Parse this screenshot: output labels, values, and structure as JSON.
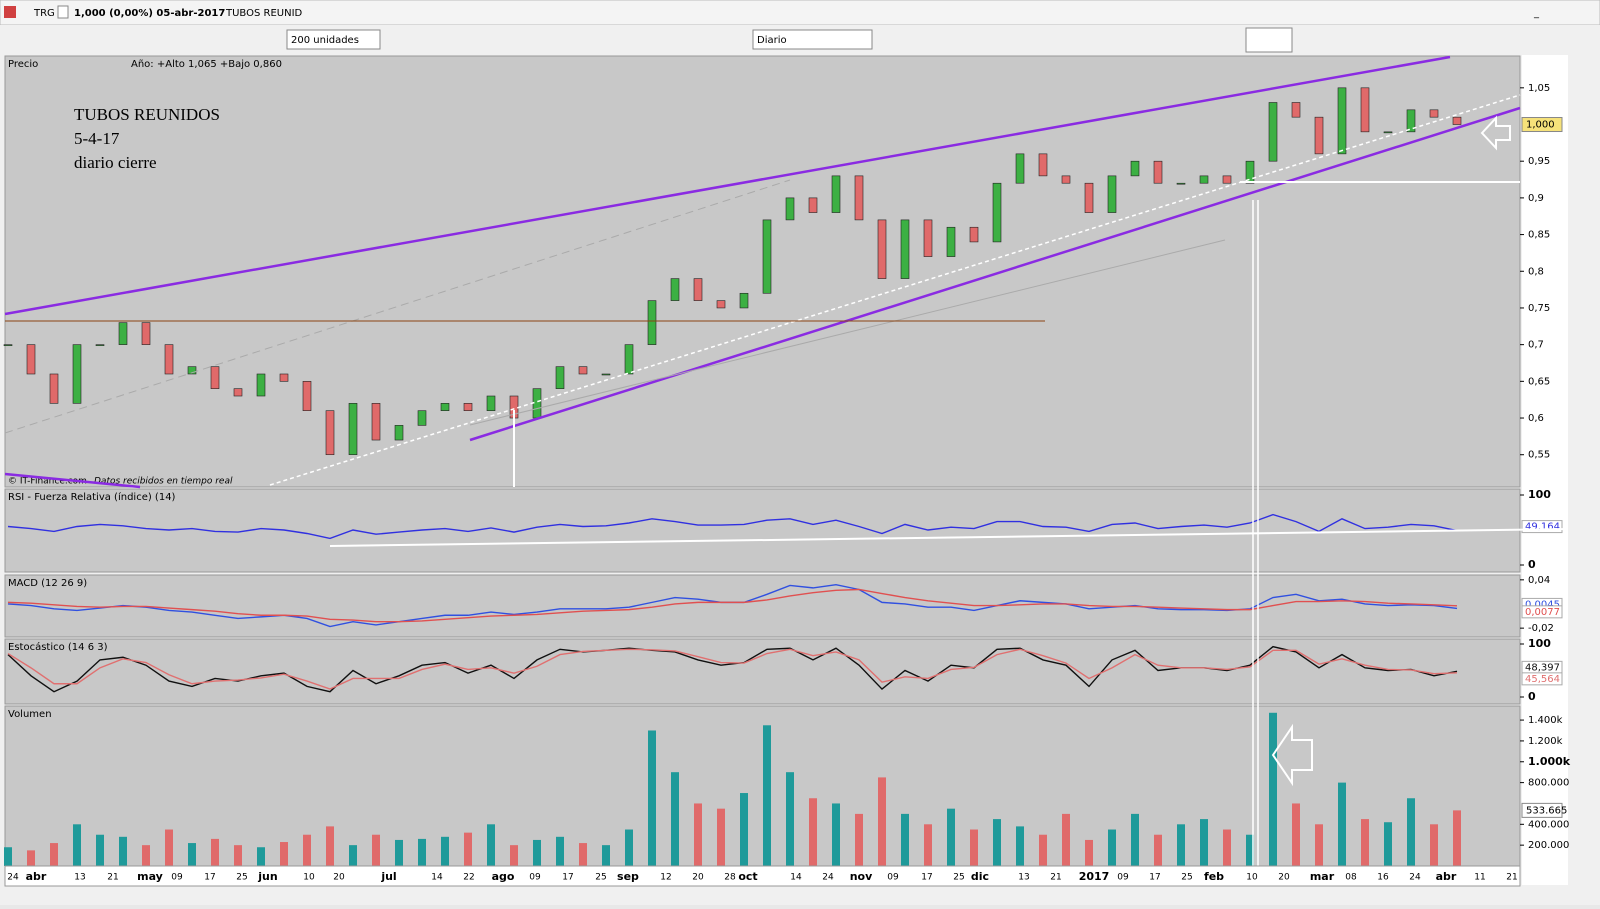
{
  "window": {
    "symbol": "TRG",
    "quote": "1,000 (0,00%) 05-abr-2017",
    "name": "TUBOS REUNID"
  },
  "toolbar": {
    "units": "200 unidades",
    "period": "Diario"
  },
  "time_axis": {
    "labels": [
      "24",
      "abr",
      "13",
      "21",
      "may",
      "09",
      "17",
      "25",
      "jun",
      "10",
      "20",
      "jul",
      "14",
      "22",
      "ago",
      "09",
      "17",
      "25",
      "sep",
      "12",
      "20",
      "28",
      "oct",
      "14",
      "24",
      "nov",
      "09",
      "17",
      "25",
      "dic",
      "13",
      "21",
      "2017",
      "09",
      "17",
      "25",
      "feb",
      "10",
      "20",
      "mar",
      "08",
      "16",
      "24",
      "abr",
      "11",
      "21"
    ]
  },
  "chart_data": [
    {
      "type": "candlestick",
      "title": "Precio",
      "subtitle": "Año: +Alto 1,065 +Bajo 0,860",
      "annotations": [
        "TUBOS REUNIDOS",
        "5-4-17",
        "diario cierre"
      ],
      "footer": "© IT-Finance.com",
      "footer_note": "Datos recibidos en tiempo real",
      "last_label": "1,000",
      "values": [
        0.7,
        0.66,
        0.62,
        0.7,
        0.7,
        0.73,
        0.7,
        0.66,
        0.67,
        0.64,
        0.63,
        0.66,
        0.65,
        0.61,
        0.55,
        0.62,
        0.57,
        0.59,
        0.61,
        0.62,
        0.61,
        0.63,
        0.6,
        0.64,
        0.67,
        0.66,
        0.66,
        0.7,
        0.76,
        0.79,
        0.76,
        0.75,
        0.77,
        0.87,
        0.9,
        0.88,
        0.93,
        0.87,
        0.79,
        0.87,
        0.82,
        0.86,
        0.84,
        0.92,
        0.96,
        0.93,
        0.92,
        0.88,
        0.93,
        0.95,
        0.92,
        0.92,
        0.93,
        0.92,
        0.95,
        1.03,
        1.01,
        0.96,
        1.05,
        0.99,
        0.99,
        1.02,
        1.01,
        1.0
      ],
      "up_color": "#3cb043",
      "down_color": "#e06a6a",
      "ylim": [
        0.506,
        1.092
      ],
      "yticks": [
        {
          "value": 1.05,
          "label": "1,05"
        },
        {
          "value": 0.95,
          "label": "0,95"
        },
        {
          "value": 0.9,
          "label": "0,9"
        },
        {
          "value": 0.85,
          "label": "0,85"
        },
        {
          "value": 0.8,
          "label": "0,8"
        },
        {
          "value": 0.75,
          "label": "0,75"
        },
        {
          "value": 0.7,
          "label": "0,7"
        },
        {
          "value": 0.65,
          "label": "0,65"
        },
        {
          "value": 0.6,
          "label": "0,6"
        },
        {
          "value": 0.55,
          "label": "0,55"
        }
      ]
    },
    {
      "type": "line",
      "title": "RSI - Fuerza Relativa (índice) (14)",
      "series": [
        {
          "color": "#3030e0",
          "last_label": "49,164",
          "values": [
            55,
            52,
            48,
            55,
            58,
            56,
            52,
            50,
            52,
            48,
            47,
            52,
            50,
            45,
            38,
            50,
            44,
            47,
            50,
            52,
            48,
            53,
            47,
            54,
            58,
            55,
            56,
            60,
            66,
            62,
            57,
            57,
            58,
            64,
            66,
            58,
            64,
            55,
            45,
            58,
            50,
            54,
            52,
            62,
            62,
            55,
            54,
            48,
            58,
            60,
            52,
            55,
            57,
            54,
            60,
            72,
            62,
            48,
            66,
            52,
            54,
            58,
            56,
            49.164
          ]
        }
      ],
      "ylim": [
        0,
        100
      ],
      "yticks": [
        0,
        100
      ]
    },
    {
      "type": "line",
      "title": "MACD (12 26 9)",
      "series": [
        {
          "color": "#3050e0",
          "last_label": "0,0045",
          "values": [
            0.01,
            0.008,
            0.004,
            0.002,
            0.005,
            0.008,
            0.006,
            0.002,
            0.0,
            -0.004,
            -0.008,
            -0.006,
            -0.004,
            -0.008,
            -0.018,
            -0.012,
            -0.016,
            -0.012,
            -0.008,
            -0.004,
            -0.004,
            0.0,
            -0.003,
            0.0,
            0.004,
            0.004,
            0.004,
            0.006,
            0.012,
            0.018,
            0.016,
            0.012,
            0.012,
            0.022,
            0.033,
            0.03,
            0.034,
            0.028,
            0.012,
            0.01,
            0.006,
            0.006,
            0.002,
            0.008,
            0.014,
            0.012,
            0.01,
            0.004,
            0.006,
            0.008,
            0.004,
            0.003,
            0.003,
            0.002,
            0.004,
            0.018,
            0.022,
            0.014,
            0.016,
            0.01,
            0.008,
            0.009,
            0.008,
            0.0045
          ]
        },
        {
          "color": "#e05050",
          "last_label": "0,0077",
          "values": [
            0.012,
            0.011,
            0.009,
            0.007,
            0.006,
            0.007,
            0.007,
            0.005,
            0.003,
            0.001,
            -0.002,
            -0.004,
            -0.004,
            -0.005,
            -0.009,
            -0.01,
            -0.012,
            -0.012,
            -0.011,
            -0.009,
            -0.007,
            -0.005,
            -0.004,
            -0.003,
            -0.001,
            0.001,
            0.002,
            0.003,
            0.006,
            0.01,
            0.012,
            0.012,
            0.012,
            0.015,
            0.02,
            0.024,
            0.027,
            0.028,
            0.023,
            0.018,
            0.014,
            0.011,
            0.008,
            0.008,
            0.009,
            0.01,
            0.01,
            0.008,
            0.007,
            0.007,
            0.006,
            0.005,
            0.004,
            0.003,
            0.003,
            0.008,
            0.013,
            0.013,
            0.014,
            0.013,
            0.011,
            0.01,
            0.009,
            0.0077
          ]
        }
      ],
      "ylim": [
        -0.031,
        0.046
      ],
      "yticks": [
        {
          "value": 0.04,
          "label": "0,04"
        },
        {
          "value": -0.02,
          "label": "-0,02"
        }
      ]
    },
    {
      "type": "line",
      "title": "Estocástico (14 6 3)",
      "series": [
        {
          "color": "#101010",
          "last_label": "48,397",
          "values": [
            80,
            40,
            10,
            30,
            70,
            75,
            60,
            30,
            20,
            35,
            30,
            40,
            45,
            20,
            10,
            50,
            25,
            40,
            60,
            65,
            45,
            60,
            35,
            70,
            90,
            85,
            88,
            92,
            88,
            85,
            70,
            60,
            65,
            90,
            92,
            70,
            92,
            60,
            15,
            50,
            30,
            60,
            55,
            90,
            92,
            70,
            60,
            20,
            70,
            88,
            50,
            55,
            55,
            50,
            60,
            95,
            85,
            55,
            80,
            55,
            50,
            52,
            40,
            48.397
          ]
        },
        {
          "color": "#e07070",
          "last_label": "45,564",
          "values": [
            82,
            55,
            25,
            25,
            55,
            72,
            65,
            42,
            25,
            30,
            32,
            36,
            43,
            30,
            15,
            35,
            35,
            35,
            52,
            62,
            52,
            55,
            45,
            58,
            80,
            86,
            88,
            90,
            89,
            87,
            76,
            65,
            64,
            82,
            90,
            78,
            85,
            70,
            28,
            38,
            35,
            52,
            56,
            80,
            90,
            78,
            64,
            35,
            55,
            80,
            60,
            55,
            55,
            52,
            57,
            88,
            88,
            62,
            72,
            60,
            52,
            51,
            44,
            45.564
          ]
        }
      ],
      "ylim": [
        0,
        100
      ],
      "yticks": [
        0,
        100
      ]
    },
    {
      "type": "volume",
      "title": "Volumen",
      "last_label": "533.665",
      "up_color": "#1f9a9a",
      "down_color": "#e06a6a",
      "values": [
        180000,
        150000,
        220000,
        400000,
        300000,
        280000,
        200000,
        350000,
        220000,
        260000,
        200000,
        180000,
        230000,
        300000,
        380000,
        200000,
        300000,
        250000,
        260000,
        280000,
        320000,
        400000,
        200000,
        250000,
        280000,
        220000,
        200000,
        350000,
        1300000,
        900000,
        600000,
        550000,
        700000,
        1350000,
        900000,
        650000,
        600000,
        500000,
        850000,
        500000,
        400000,
        550000,
        350000,
        450000,
        380000,
        300000,
        500000,
        250000,
        350000,
        500000,
        300000,
        400000,
        450000,
        350000,
        300000,
        1470000,
        600000,
        400000,
        800000,
        450000,
        420000,
        650000,
        400000,
        533665
      ],
      "ylim": [
        0,
        1535000
      ],
      "yticks": [
        {
          "value": 1400000,
          "label": "1.400k"
        },
        {
          "value": 1200000,
          "label": "1.200k"
        },
        {
          "value": 1000000,
          "label": "1.000k"
        },
        {
          "value": 800000,
          "label": "800.000"
        },
        {
          "value": 400000,
          "label": "400.000"
        },
        {
          "value": 200000,
          "label": "200.000"
        }
      ]
    }
  ]
}
